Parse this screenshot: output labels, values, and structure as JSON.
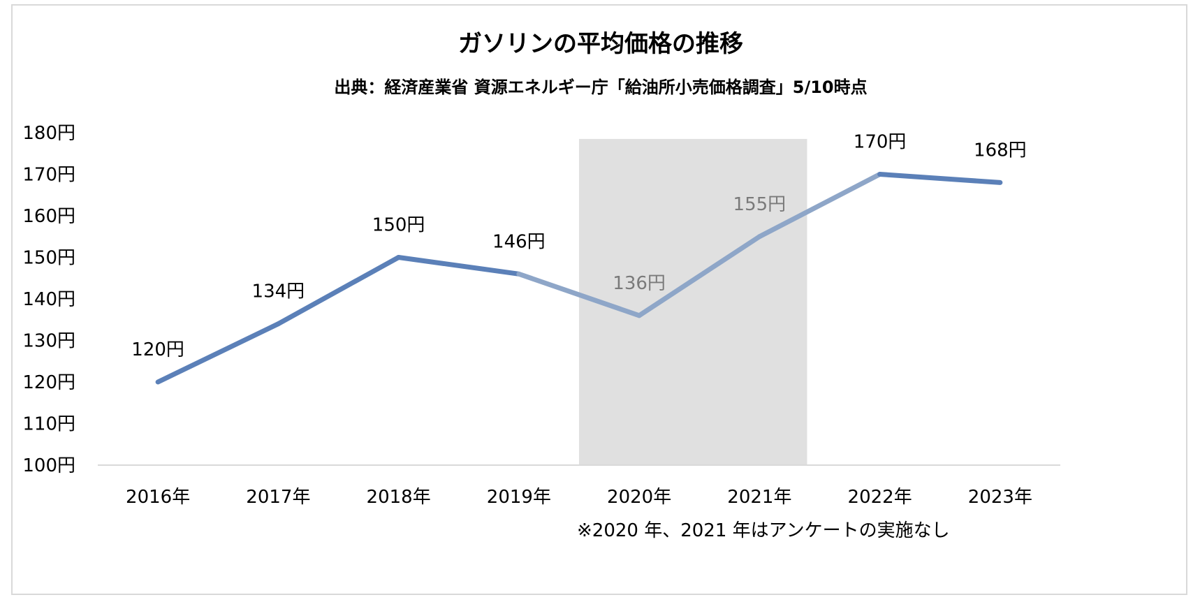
{
  "chart_data": {
    "type": "line",
    "title": "ガソリンの平均価格の推移",
    "subtitle": "出典：経済産業省 資源エネルギー庁「給油所小売価格調査」5/10時点",
    "categories": [
      "2016年",
      "2017年",
      "2018年",
      "2019年",
      "2020年",
      "2021年",
      "2022年",
      "2023年"
    ],
    "values": [
      120,
      134,
      150,
      146,
      136,
      155,
      170,
      168
    ],
    "data_labels": [
      "120円",
      "134円",
      "150円",
      "146円",
      "136円",
      "155円",
      "170円",
      "168円"
    ],
    "y_ticks": [
      "100円",
      "110円",
      "120円",
      "130円",
      "140円",
      "150円",
      "160円",
      "170円",
      "180円"
    ],
    "ylim": [
      100,
      180
    ],
    "grid": false,
    "legend": "none",
    "highlight_categories": [
      "2020年",
      "2021年"
    ],
    "note": "※2020 年、2021 年はアンケートの実施なし",
    "colors": {
      "line": "#5B80B8",
      "line_dim": "#8EA6C8",
      "highlight_band": "#E0E0E0",
      "axis": "#D9D9D9",
      "label_dim": "#7A7A7A"
    }
  }
}
